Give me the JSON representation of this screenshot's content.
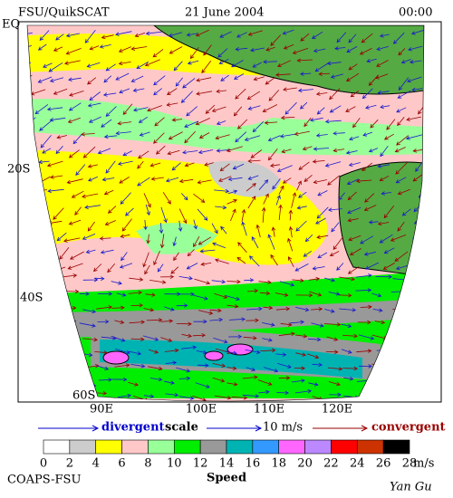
{
  "header": {
    "left": "FSU/QuikSCAT",
    "center": "21 June 2004",
    "right": "00:00"
  },
  "map": {
    "lat_labels": [
      "EQ",
      "20S",
      "40S",
      "60S"
    ],
    "lon_labels": [
      "90E",
      "100E",
      "110E",
      "120E"
    ]
  },
  "scale": {
    "divergent": "divergent",
    "scale": "scale",
    "value": "10 m/s",
    "convergent": "convergent"
  },
  "colorbar": {
    "colors": [
      "#ffffff",
      "#cccccc",
      "#ffff00",
      "#ffc8c8",
      "#99ff99",
      "#00ee00",
      "#999999",
      "#00b3b3",
      "#3399ff",
      "#ff66ff",
      "#bb88ff",
      "#ff0000",
      "#cc3300",
      "#000000"
    ],
    "ticks": [
      0,
      2,
      4,
      6,
      8,
      10,
      12,
      14,
      16,
      18,
      20,
      22,
      24,
      26,
      28
    ],
    "unit": "m/s",
    "title": "Speed"
  },
  "footer": {
    "left": "COAPS-FSU",
    "right": "Yan Gu"
  }
}
